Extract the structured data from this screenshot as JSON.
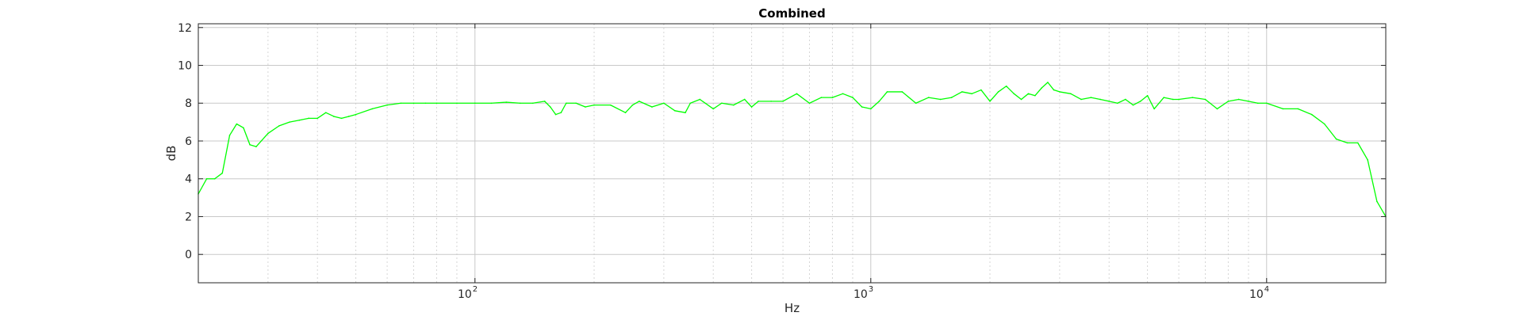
{
  "chart_data": {
    "type": "line",
    "title": "Combined",
    "xlabel": "Hz",
    "ylabel": "dB",
    "x_scale": "log",
    "xlim": [
      20,
      20000
    ],
    "ylim": [
      -1.5,
      12.2
    ],
    "xticks": [
      {
        "value": 100,
        "base": "10",
        "exp": "2"
      },
      {
        "value": 1000,
        "base": "10",
        "exp": "3"
      },
      {
        "value": 10000,
        "base": "10",
        "exp": "4"
      }
    ],
    "yticks": [
      "0",
      "2",
      "4",
      "6",
      "8",
      "10",
      "12"
    ],
    "grid": true,
    "minor_grid": true,
    "series": [
      {
        "color": "#00ff00",
        "x": [
          20,
          21,
          22,
          23,
          24,
          25,
          26,
          27,
          28,
          30,
          32,
          34,
          36,
          38,
          40,
          42,
          44,
          46,
          48,
          50,
          55,
          60,
          65,
          70,
          75,
          80,
          90,
          100,
          110,
          120,
          130,
          140,
          150,
          155,
          160,
          165,
          170,
          180,
          190,
          200,
          220,
          240,
          250,
          260,
          280,
          300,
          320,
          340,
          350,
          370,
          400,
          420,
          450,
          480,
          500,
          520,
          560,
          600,
          650,
          700,
          750,
          800,
          850,
          900,
          950,
          1000,
          1050,
          1100,
          1200,
          1300,
          1400,
          1500,
          1600,
          1700,
          1800,
          1900,
          2000,
          2100,
          2200,
          2300,
          2400,
          2500,
          2600,
          2700,
          2800,
          2900,
          3000,
          3200,
          3400,
          3600,
          3800,
          4000,
          4200,
          4400,
          4600,
          4800,
          5000,
          5200,
          5500,
          5800,
          6000,
          6500,
          7000,
          7500,
          8000,
          8500,
          9000,
          9500,
          10000,
          11000,
          12000,
          13000,
          14000,
          15000,
          16000,
          17000,
          18000,
          19000,
          20000
        ],
        "y": [
          3.2,
          4.0,
          4.0,
          4.3,
          6.3,
          6.9,
          6.7,
          5.8,
          5.7,
          6.4,
          6.8,
          7.0,
          7.1,
          7.2,
          7.2,
          7.5,
          7.3,
          7.2,
          7.3,
          7.4,
          7.7,
          7.9,
          8.0,
          8.0,
          8.0,
          8.0,
          8.0,
          8.0,
          8.0,
          8.05,
          8.0,
          8.0,
          8.1,
          7.8,
          7.4,
          7.5,
          8.0,
          8.0,
          7.8,
          7.9,
          7.9,
          7.5,
          7.9,
          8.1,
          7.8,
          8.0,
          7.6,
          7.5,
          8.0,
          8.2,
          7.7,
          8.0,
          7.9,
          8.2,
          7.8,
          8.1,
          8.1,
          8.1,
          8.5,
          8.0,
          8.3,
          8.3,
          8.5,
          8.3,
          7.8,
          7.7,
          8.1,
          8.6,
          8.6,
          8.0,
          8.3,
          8.2,
          8.3,
          8.6,
          8.5,
          8.7,
          8.1,
          8.6,
          8.9,
          8.5,
          8.2,
          8.5,
          8.4,
          8.8,
          9.1,
          8.7,
          8.6,
          8.5,
          8.2,
          8.3,
          8.2,
          8.1,
          8.0,
          8.2,
          7.9,
          8.1,
          8.4,
          7.7,
          8.3,
          8.2,
          8.2,
          8.3,
          8.2,
          7.7,
          8.1,
          8.2,
          8.1,
          8.0,
          8.0,
          7.7,
          7.7,
          7.4,
          6.9,
          6.1,
          5.9,
          5.9,
          5.0,
          2.8,
          2.0
        ]
      }
    ]
  }
}
